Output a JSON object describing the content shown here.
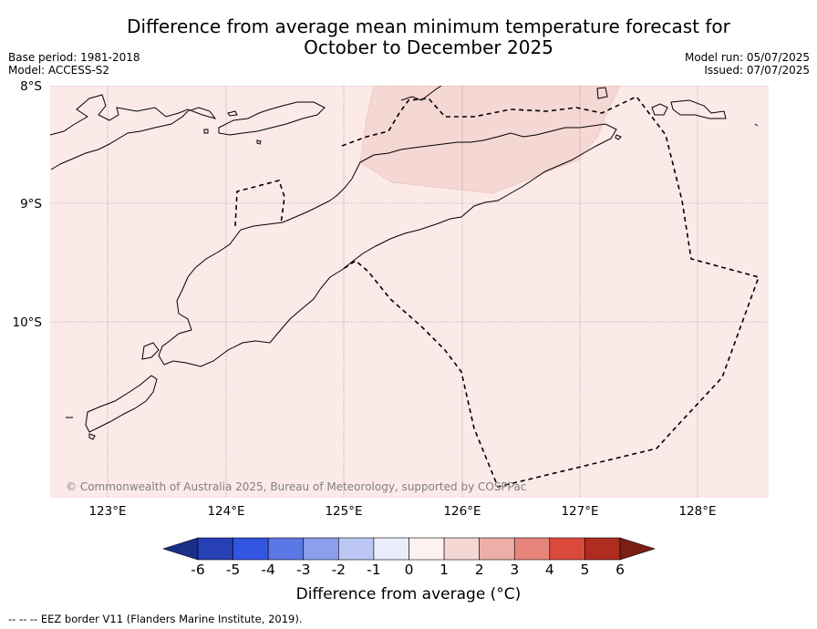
{
  "title_line1": "Difference from average mean minimum temperature forecast for",
  "title_line2": "October to December 2025",
  "base_period": "Base period: 1981-2018",
  "model": "Model: ACCESS-S2",
  "model_run": "Model run: 05/07/2025",
  "issued": "Issued: 07/07/2025",
  "map": {
    "lon_ticks": [
      "123°E",
      "124°E",
      "125°E",
      "126°E",
      "127°E",
      "128°E"
    ],
    "lat_ticks": [
      "8°S",
      "9°S",
      "10°S"
    ],
    "credit": "© Commonwealth of Australia 2025, Bureau of Meteorology, supported by COSPPac",
    "background_fill": "#fbeae8",
    "anomaly_fill": "#f5d7d3"
  },
  "colorbar": {
    "labels": [
      "-6",
      "-5",
      "-4",
      "-3",
      "-2",
      "-1",
      "0",
      "1",
      "2",
      "3",
      "4",
      "5",
      "6"
    ],
    "colors": [
      "#1a2f88",
      "#2840b5",
      "#3255e2",
      "#5b77e6",
      "#8b9feb",
      "#bcc8f3",
      "#e9edfb",
      "#fdf2f1",
      "#f5d7d3",
      "#ecaea7",
      "#e7857c",
      "#dc4a3e",
      "#ae2c20",
      "#7b1e16"
    ],
    "title": "Difference from average (°C)"
  },
  "legend_note": "-- -- -- EEZ border V11 (Flanders Marine Institute, 2019)."
}
